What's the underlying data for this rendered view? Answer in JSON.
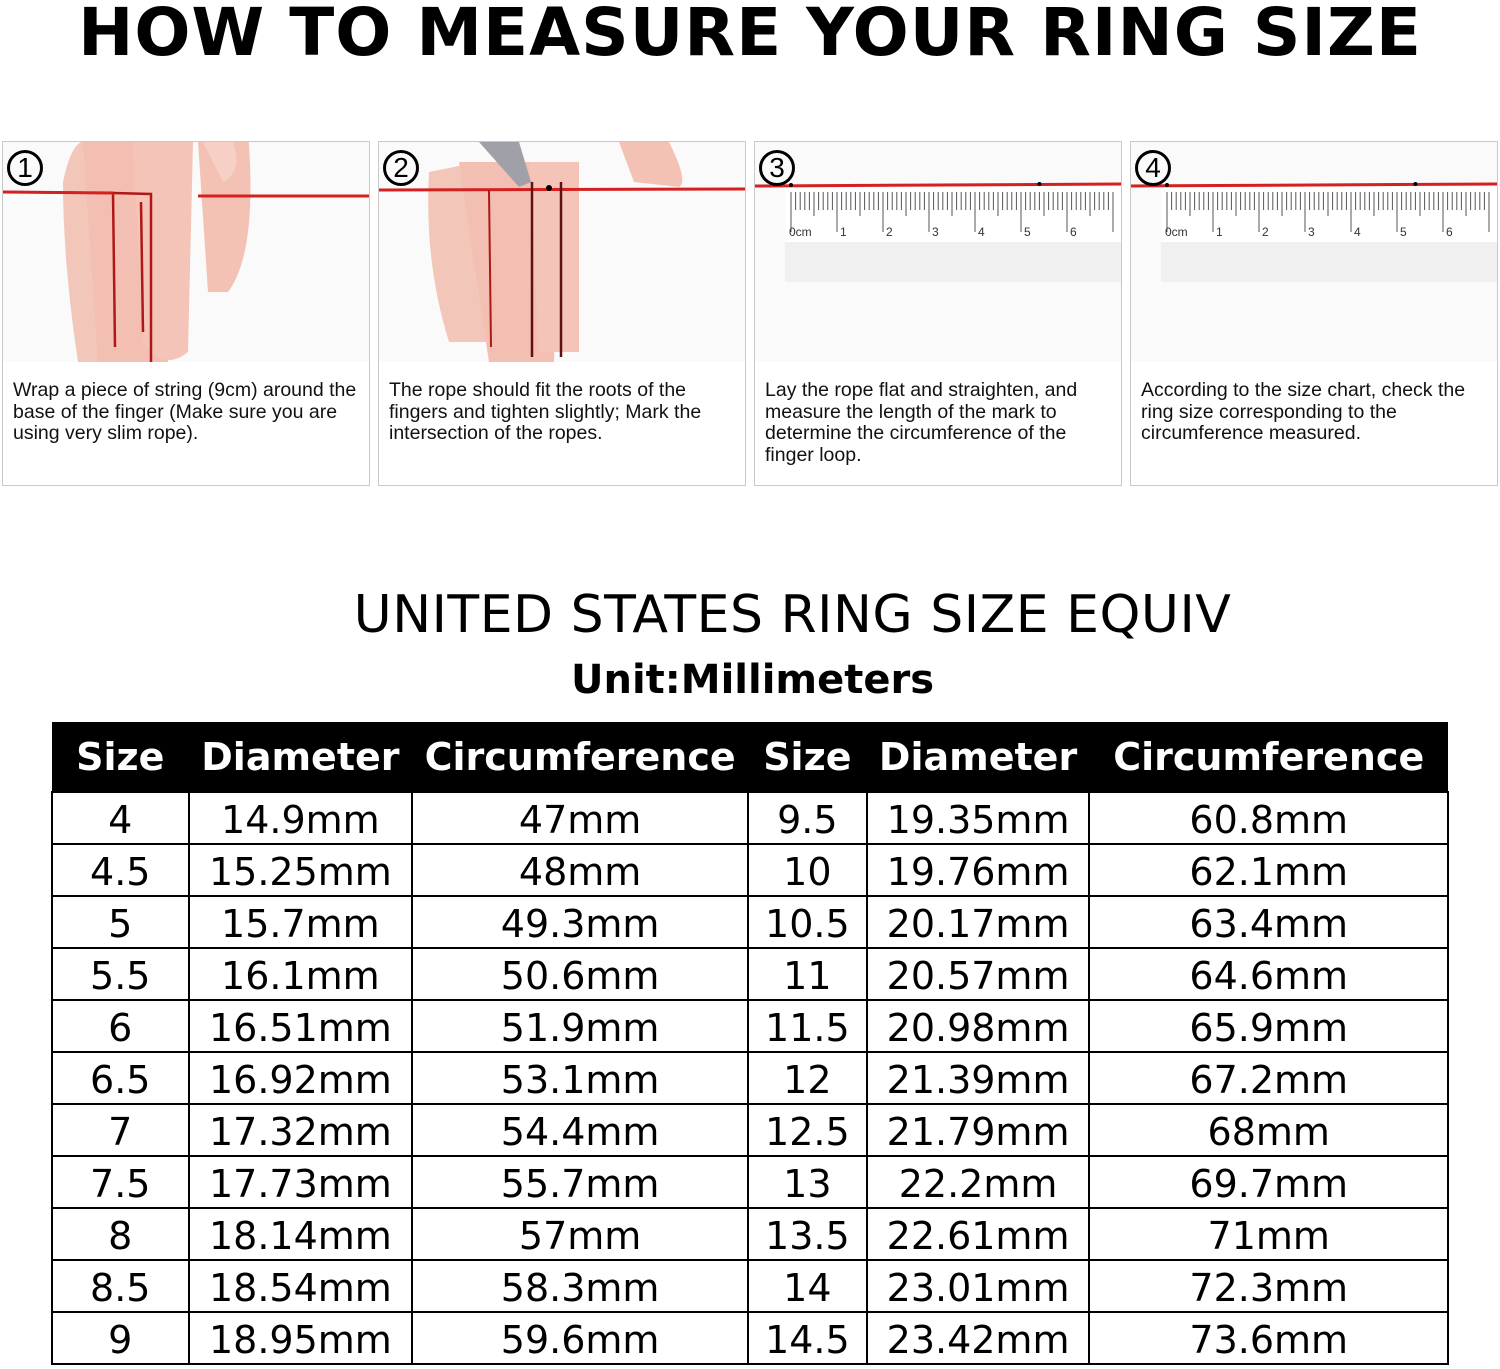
{
  "title": "HOW TO MEASURE YOUR RING SIZE",
  "steps": [
    {
      "number": "1",
      "text": "Wrap a piece of string (9cm) around the base of the finger (Make sure you are using very slim rope)."
    },
    {
      "number": "2",
      "text": "The rope should fit the roots of the fingers and tighten slightly; Mark the intersection of the ropes."
    },
    {
      "number": "3",
      "text": "Lay the rope flat and straighten, and measure the length of the mark to determine the circumference of the finger loop."
    },
    {
      "number": "4",
      "text": "According to the size chart, check the ring size corresponding to the circumference measured."
    }
  ],
  "ruler_labels": [
    "0cm",
    "1",
    "2",
    "3",
    "4",
    "5",
    "6"
  ],
  "chart_title": "UNITED STATES RING SIZE EQUIV",
  "unit": "Unit:Millimeters",
  "table": {
    "headers": [
      "Size",
      "Diameter",
      "Circumference",
      "Size",
      "Diameter",
      "Circumference"
    ],
    "rows": [
      [
        "4",
        "14.9mm",
        "47mm",
        "9.5",
        "19.35mm",
        "60.8mm"
      ],
      [
        "4.5",
        "15.25mm",
        "48mm",
        "10",
        "19.76mm",
        "62.1mm"
      ],
      [
        "5",
        "15.7mm",
        "49.3mm",
        "10.5",
        "20.17mm",
        "63.4mm"
      ],
      [
        "5.5",
        "16.1mm",
        "50.6mm",
        "11",
        "20.57mm",
        "64.6mm"
      ],
      [
        "6",
        "16.51mm",
        "51.9mm",
        "11.5",
        "20.98mm",
        "65.9mm"
      ],
      [
        "6.5",
        "16.92mm",
        "53.1mm",
        "12",
        "21.39mm",
        "67.2mm"
      ],
      [
        "7",
        "17.32mm",
        "54.4mm",
        "12.5",
        "21.79mm",
        "68mm"
      ],
      [
        "7.5",
        "17.73mm",
        "55.7mm",
        "13",
        "22.2mm",
        "69.7mm"
      ],
      [
        "8",
        "18.14mm",
        "57mm",
        "13.5",
        "22.61mm",
        "71mm"
      ],
      [
        "8.5",
        "18.54mm",
        "58.3mm",
        "14",
        "23.01mm",
        "72.3mm"
      ],
      [
        "9",
        "18.95mm",
        "59.6mm",
        "14.5",
        "23.42mm",
        "73.6mm"
      ]
    ]
  },
  "colors": {
    "string": "#d42020",
    "skin": "#f2c0b4",
    "header_bg": "#000000"
  }
}
